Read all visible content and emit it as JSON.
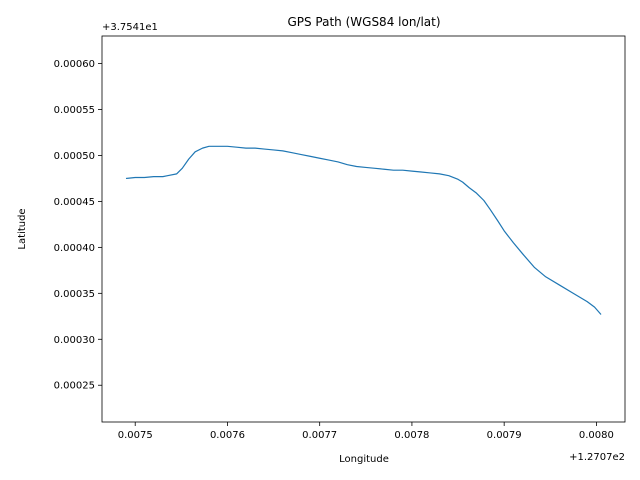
{
  "chart_data": {
    "type": "line",
    "title": "GPS Path (WGS84 lon/lat)",
    "xlabel": "Longitude",
    "ylabel": "Latitude",
    "x_offset_label": "+1.2707e2",
    "y_offset_label": "+3.7541e1",
    "xlim": [
      0.007464,
      0.008031
    ],
    "ylim": [
      0.00021,
      0.00063
    ],
    "x_ticks": [
      0.0075,
      0.0076,
      0.0077,
      0.0078,
      0.0079,
      0.008
    ],
    "x_tick_labels": [
      "0.0075",
      "0.0076",
      "0.0077",
      "0.0078",
      "0.0079",
      "0.0080"
    ],
    "y_ticks": [
      0.00025,
      0.0003,
      0.00035,
      0.0004,
      0.00045,
      0.0005,
      0.00055,
      0.0006
    ],
    "y_tick_labels": [
      "0.00025",
      "0.00030",
      "0.00035",
      "0.00040",
      "0.00045",
      "0.00050",
      "0.00055",
      "0.00060"
    ],
    "grid": false,
    "series_color": "#1f77b4",
    "series": [
      {
        "x": [
          0.00749,
          0.0075,
          0.00751,
          0.00752,
          0.00753,
          0.007535,
          0.007545,
          0.007551,
          0.007558,
          0.007565,
          0.007573,
          0.00758,
          0.00759,
          0.0076,
          0.00761,
          0.00762,
          0.00763,
          0.00764,
          0.00765,
          0.00766,
          0.00767,
          0.00768,
          0.00769,
          0.0077,
          0.00771,
          0.00772,
          0.00773,
          0.00774,
          0.00775,
          0.00776,
          0.00777,
          0.00778,
          0.00779,
          0.0078,
          0.00781,
          0.00782,
          0.00783,
          0.00784,
          0.00785,
          0.007855,
          0.007862,
          0.00787,
          0.007878,
          0.007885,
          0.007893,
          0.0079,
          0.00791,
          0.00792,
          0.007933,
          0.007945,
          0.00796,
          0.007975,
          0.00799,
          0.007998,
          0.008005
        ],
        "y": [
          0.000475,
          0.000476,
          0.000476,
          0.000477,
          0.000477,
          0.000478,
          0.00048,
          0.000486,
          0.000496,
          0.000504,
          0.000508,
          0.00051,
          0.00051,
          0.00051,
          0.000509,
          0.000508,
          0.000508,
          0.000507,
          0.000506,
          0.000505,
          0.000503,
          0.000501,
          0.000499,
          0.000497,
          0.000495,
          0.000493,
          0.00049,
          0.000488,
          0.000487,
          0.000486,
          0.000485,
          0.000484,
          0.000484,
          0.000483,
          0.000482,
          0.000481,
          0.00048,
          0.000478,
          0.000474,
          0.000471,
          0.000465,
          0.000459,
          0.000451,
          0.000441,
          0.000429,
          0.000418,
          0.000405,
          0.000393,
          0.000378,
          0.000368,
          0.000359,
          0.00035,
          0.000341,
          0.000335,
          0.000327
        ]
      }
    ]
  }
}
